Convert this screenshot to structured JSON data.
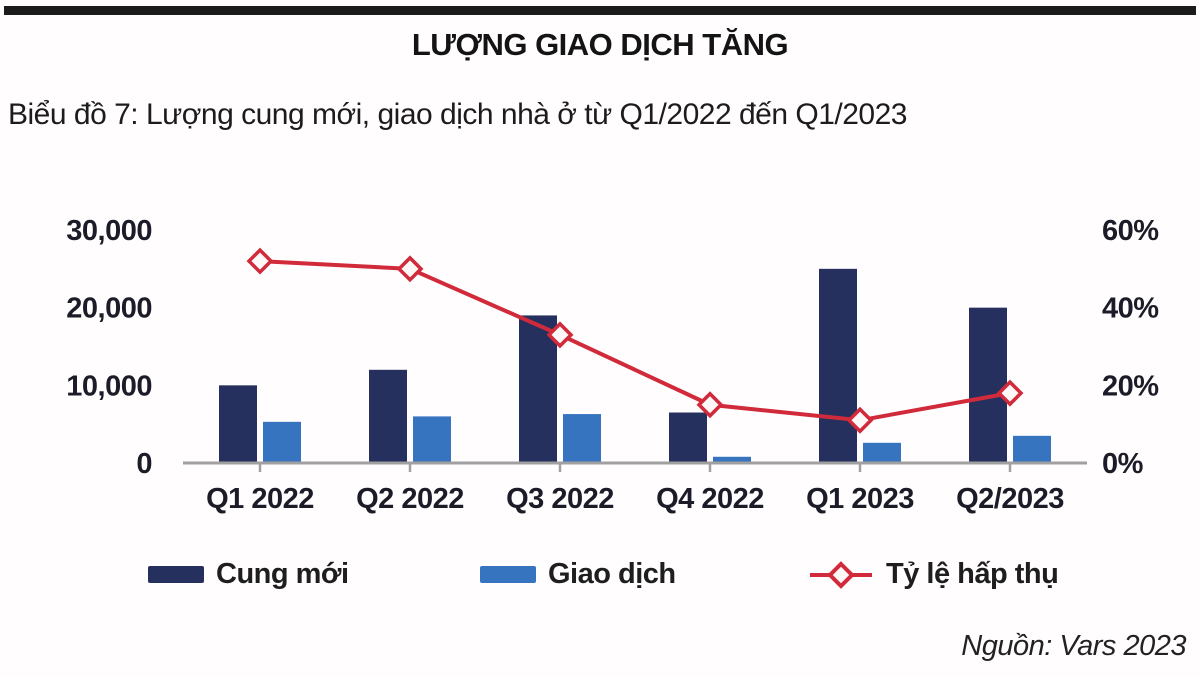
{
  "header": {
    "title": "LƯỢNG GIAO DỊCH TĂNG"
  },
  "caption": "Biểu đồ 7: Lượng cung mới, giao dịch nhà ở từ Q1/2022 đến Q1/2023",
  "source": "Nguồn: Vars 2023",
  "legend": {
    "cung_moi": "Cung mới",
    "giao_dich": "Giao dịch",
    "ty_le_hap_thu": "Tỷ lệ hấp thụ"
  },
  "colors": {
    "dark_bar": "#26305e",
    "blue_bar": "#3774c0",
    "line": "#d12a3b",
    "marker_fill": "#fdf7f7",
    "axis_line": "#a0a0a0",
    "tick_text": "#1c1c28"
  },
  "chart_data": {
    "type": "bar",
    "subtype": "combo-bar-line",
    "title": "Biểu đồ 7: Lượng cung mới, giao dịch nhà ở từ Q1/2022 đến Q1/2023",
    "categories": [
      "Q1 2022",
      "Q2 2022",
      "Q3 2022",
      "Q4 2022",
      "Q1 2023",
      "Q2/2023"
    ],
    "series": [
      {
        "name": "Cung mới",
        "type": "bar",
        "axis": "left",
        "values": [
          10000,
          12000,
          19000,
          6500,
          25000,
          20000
        ]
      },
      {
        "name": "Giao dịch",
        "type": "bar",
        "axis": "left",
        "values": [
          5300,
          6000,
          6300,
          800,
          2600,
          3500
        ]
      },
      {
        "name": "Tỷ lệ hấp thụ",
        "type": "line",
        "axis": "right",
        "values": [
          52,
          50,
          33,
          15,
          11,
          18
        ]
      }
    ],
    "left_axis": {
      "ticks": [
        "30,000",
        "20,000",
        "10,000",
        "0"
      ],
      "min": 0,
      "max": 30000
    },
    "right_axis": {
      "ticks": [
        "60%",
        "40%",
        "20%",
        "0%"
      ],
      "min": 0,
      "max": 60
    },
    "grid": false,
    "legend_position": "bottom"
  }
}
